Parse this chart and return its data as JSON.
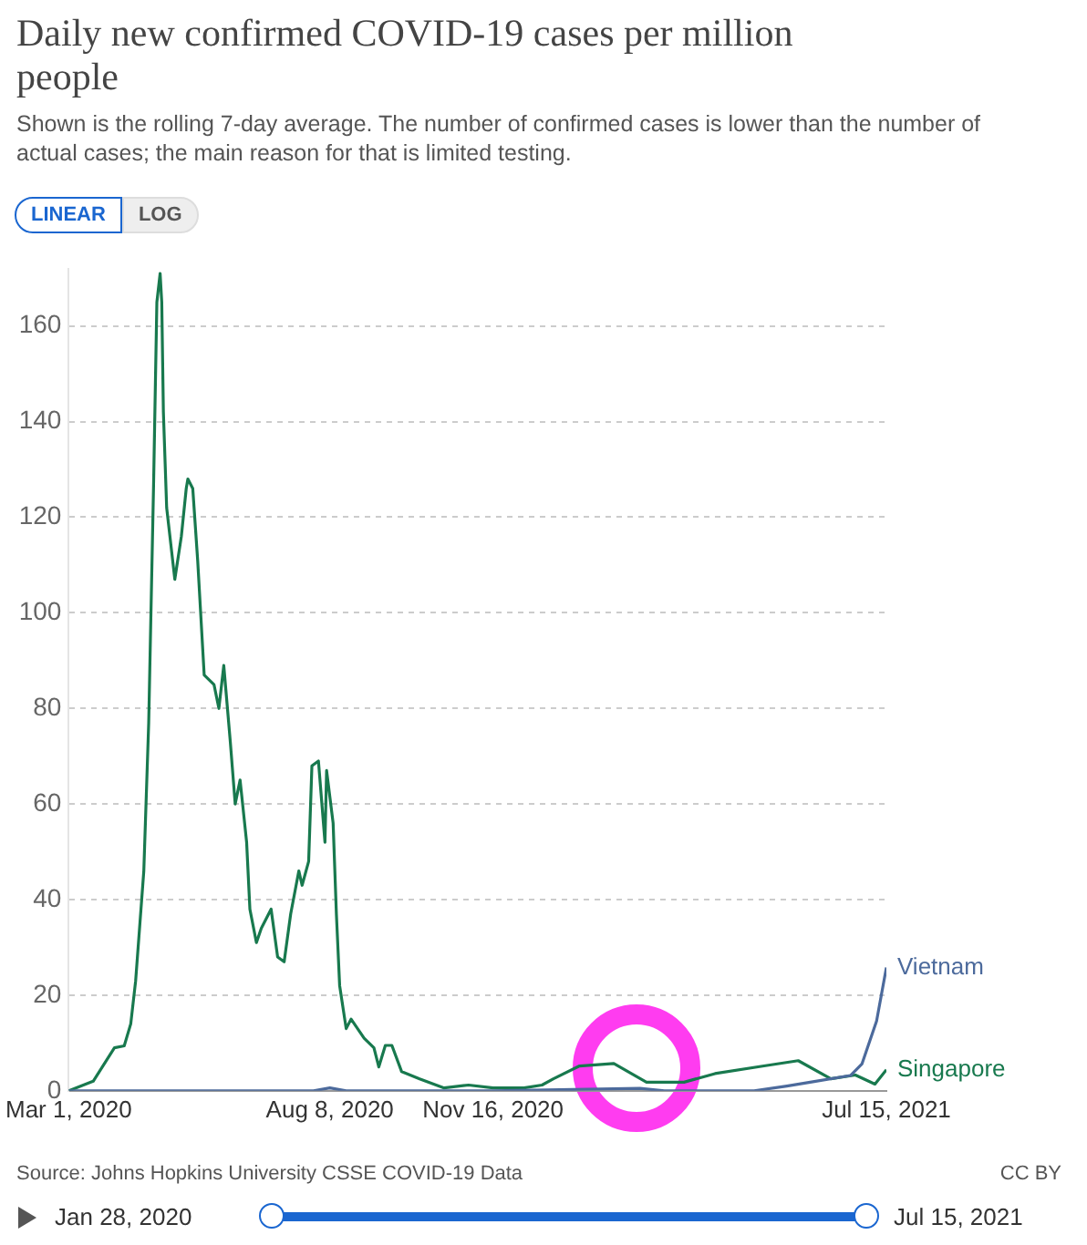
{
  "chart_data": {
    "type": "line",
    "title": "Daily new confirmed COVID-19 cases per million people",
    "subtitle": "Shown is the rolling 7-day average. The number of confirmed cases is lower than the number of actual cases; the main reason for that is limited testing.",
    "annotations": [
      "Source: Johns Hopkins University CSSE COVID-19 Data",
      "CC BY",
      "LINEAR",
      "LOG",
      "Jan 28, 2020",
      "Jul 15, 2021"
    ],
    "series": [
      {
        "name": "Vietnam",
        "color": "#4c6a9c",
        "x": [
          "2020-03-01",
          "2020-07-29",
          "2020-08-08",
          "2020-08-18",
          "2020-11-16",
          "2021-02-14",
          "2021-03-01",
          "2021-04-25",
          "2021-05-15",
          "2021-05-31",
          "2021-06-23",
          "2021-06-30",
          "2021-07-09",
          "2021-07-15"
        ],
        "values": [
          0,
          0,
          0.6,
          0,
          0,
          0.5,
          0,
          0,
          1,
          1.9,
          3.2,
          5.6,
          14.6,
          25.8
        ]
      },
      {
        "name": "Singapore",
        "color": "#18794e",
        "x": [
          "2020-03-01",
          "2020-03-16",
          "2020-03-29",
          "2020-04-04",
          "2020-04-08",
          "2020-04-11",
          "2020-04-16",
          "2020-04-19",
          "2020-04-22",
          "2020-04-24",
          "2020-04-26",
          "2020-04-27",
          "2020-04-28",
          "2020-04-30",
          "2020-05-05",
          "2020-05-09",
          "2020-05-12",
          "2020-05-13",
          "2020-05-16",
          "2020-05-19",
          "2020-05-23",
          "2020-05-29",
          "2020-06-01",
          "2020-06-04",
          "2020-06-08",
          "2020-06-11",
          "2020-06-14",
          "2020-06-18",
          "2020-06-20",
          "2020-06-24",
          "2020-06-27",
          "2020-07-03",
          "2020-07-07",
          "2020-07-11",
          "2020-07-15",
          "2020-07-20",
          "2020-07-22",
          "2020-07-26",
          "2020-07-28",
          "2020-08-01",
          "2020-08-05",
          "2020-08-06",
          "2020-08-10",
          "2020-08-12",
          "2020-08-14",
          "2020-08-18",
          "2020-08-21",
          "2020-08-29",
          "2020-09-04",
          "2020-09-07",
          "2020-09-11",
          "2020-09-15",
          "2020-09-21",
          "2020-10-02",
          "2020-10-17",
          "2020-11-01",
          "2020-11-16",
          "2020-12-05",
          "2020-12-16",
          "2020-12-23",
          "2021-01-08",
          "2021-01-29",
          "2021-02-18",
          "2021-03-13",
          "2021-04-01",
          "2021-05-01",
          "2021-05-22",
          "2021-06-11",
          "2021-06-26",
          "2021-07-08",
          "2021-07-15"
        ],
        "values": [
          0,
          2,
          9,
          9.4,
          14,
          23,
          46,
          77,
          127,
          165,
          171,
          165,
          142,
          122,
          107,
          116,
          126,
          128,
          126,
          111,
          87,
          85,
          80,
          89,
          73,
          60,
          65,
          52,
          38,
          31,
          34,
          38,
          28,
          27,
          37,
          46,
          43,
          48,
          68,
          69,
          52,
          67,
          56,
          37,
          22,
          13,
          15,
          11,
          9,
          5,
          9.5,
          9.5,
          4,
          2.5,
          0.6,
          1.2,
          0.6,
          0.6,
          1.2,
          2.5,
          5.2,
          5.7,
          1.8,
          1.8,
          3.6,
          5.2,
          6.3,
          2.5,
          3.3,
          1.4,
          4.4
        ]
      }
    ],
    "xlim": [
      "2020-03-01",
      "2021-07-15"
    ],
    "xticks": [
      {
        "value": "2020-03-01",
        "label": "Mar 1, 2020"
      },
      {
        "value": "2020-08-08",
        "label": "Aug 8, 2020"
      },
      {
        "value": "2020-11-16",
        "label": "Nov 16, 2020"
      },
      {
        "value": "2021-07-15",
        "label": "Jul 15, 2021"
      }
    ],
    "ylim": [
      0,
      172
    ],
    "yticks": [
      0,
      20,
      40,
      60,
      80,
      100,
      120,
      140,
      160
    ],
    "grid": "y",
    "marker": "none",
    "line_style": "solid"
  }
}
